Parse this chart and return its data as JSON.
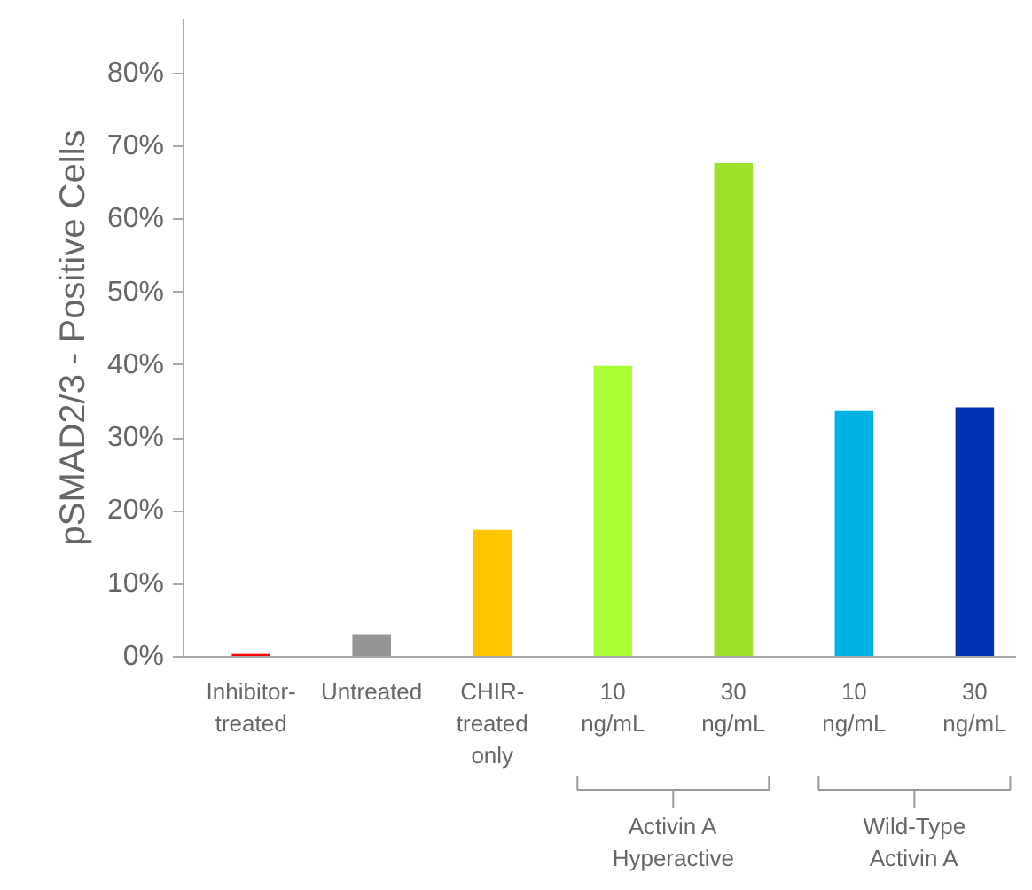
{
  "chart_data": {
    "type": "bar",
    "ylabel": "pSMAD2/3 - Positive Cells",
    "categories": [
      "Inhibitor-\ntreated",
      "Untreated",
      "CHIR-\ntreated\nonly",
      "10\nng/mL",
      "30\nng/mL",
      "10\nng/mL",
      "30\nng/mL"
    ],
    "values": [
      0.4,
      3.1,
      17.4,
      39.9,
      67.7,
      33.7,
      34.2
    ],
    "colors": [
      "#ff0000",
      "#959598",
      "#ffc600",
      "#a8ff33",
      "#9de22b",
      "#00b2e3",
      "#0033b3"
    ],
    "ylim": [
      0,
      87.5
    ],
    "yticks": [
      {
        "value": 0,
        "label": "0%"
      },
      {
        "value": 10,
        "label": "10%"
      },
      {
        "value": 20,
        "label": "20%"
      },
      {
        "value": 30,
        "label": "30%"
      },
      {
        "value": 40,
        "label": "40%"
      },
      {
        "value": 50,
        "label": "50%"
      },
      {
        "value": 60,
        "label": "60%"
      },
      {
        "value": 70,
        "label": "70%"
      },
      {
        "value": 80,
        "label": "80%"
      }
    ],
    "annotations": [
      "Activin A\nHyperactive",
      "Wild-Type\nActivin A"
    ],
    "grid": false,
    "legend": false
  }
}
